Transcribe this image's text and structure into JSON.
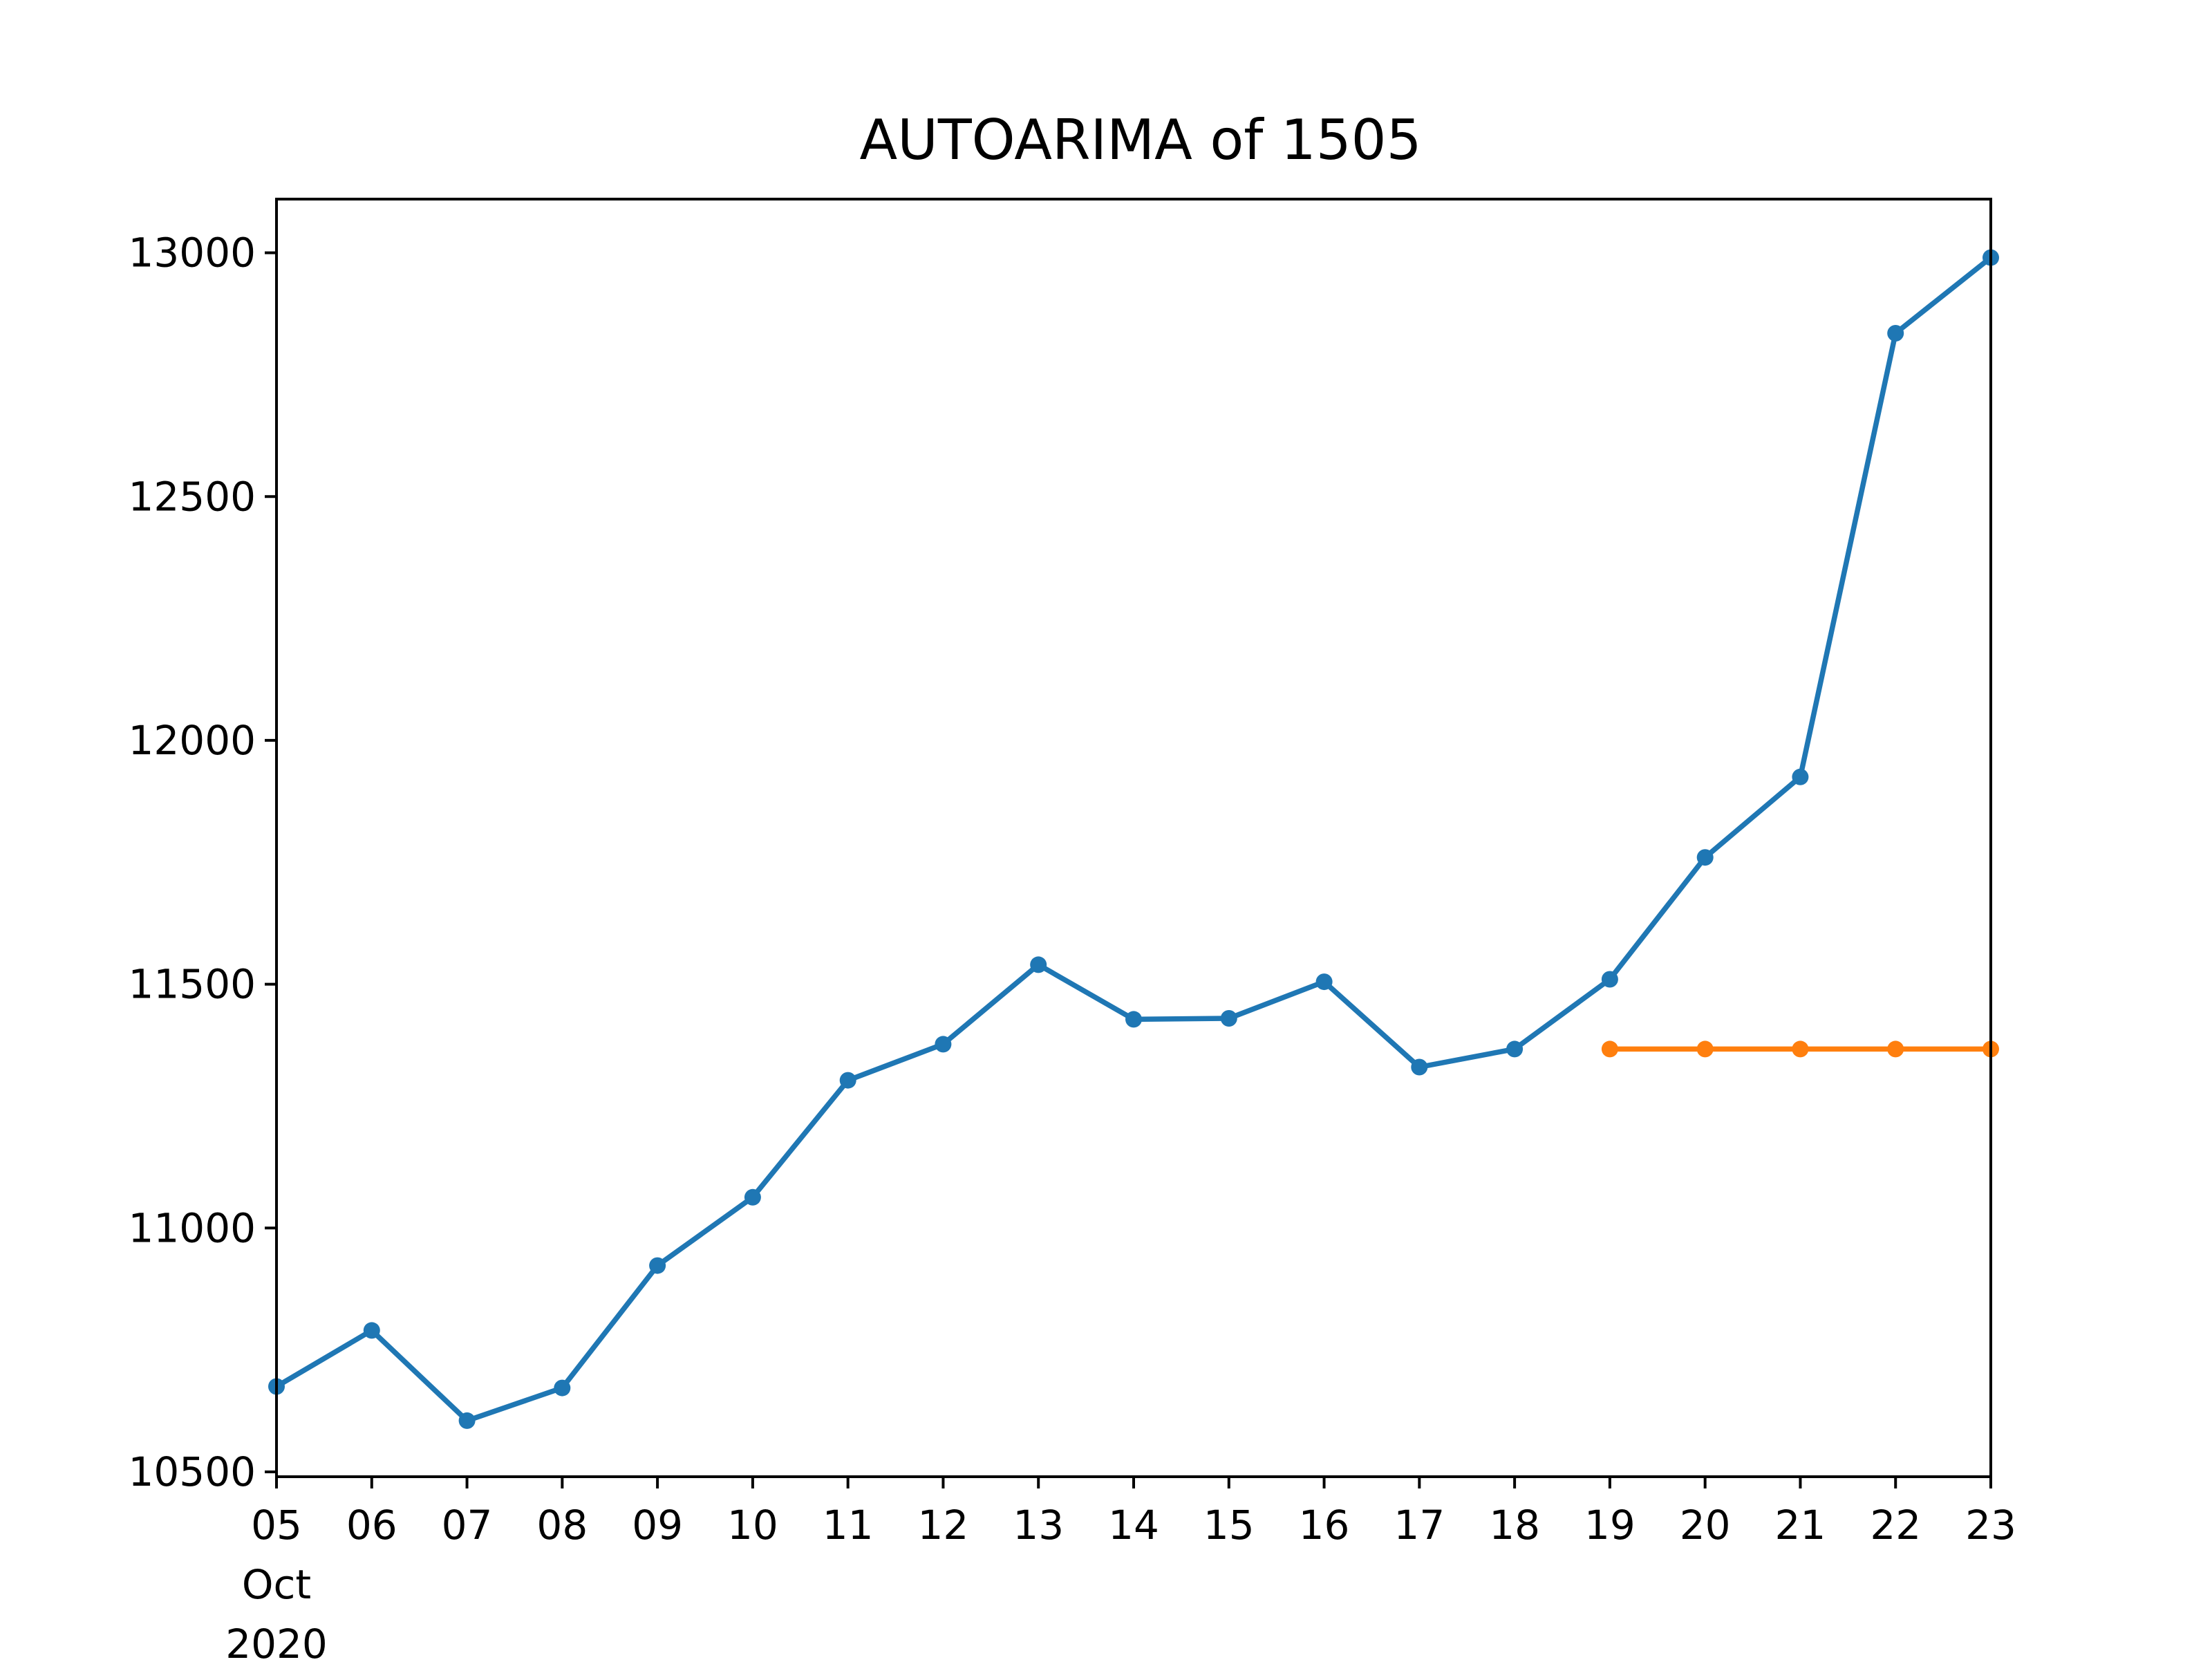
{
  "chart_data": {
    "type": "line",
    "title": "AUTOARIMA of 1505",
    "xlabel": "",
    "ylabel": "",
    "x": [
      "2020-10-05",
      "2020-10-06",
      "2020-10-07",
      "2020-10-08",
      "2020-10-09",
      "2020-10-10",
      "2020-10-11",
      "2020-10-12",
      "2020-10-13",
      "2020-10-14",
      "2020-10-15",
      "2020-10-16",
      "2020-10-17",
      "2020-10-18",
      "2020-10-19",
      "2020-10-20",
      "2020-10-21",
      "2020-10-22",
      "2020-10-23"
    ],
    "x_tick_labels": [
      "05",
      "06",
      "07",
      "08",
      "09",
      "10",
      "11",
      "12",
      "13",
      "14",
      "15",
      "16",
      "17",
      "18",
      "19",
      "20",
      "21",
      "22",
      "23"
    ],
    "x_tick_sublabel_month": "Oct",
    "x_tick_sublabel_year": "2020",
    "xlim": [
      "2020-10-05",
      "2020-10-23"
    ],
    "ylim": [
      10490,
      13110
    ],
    "y_ticks": [
      10500,
      11000,
      11500,
      12000,
      12500,
      13000
    ],
    "y_tick_labels": [
      "10500",
      "11000",
      "11500",
      "12000",
      "12500",
      "13000"
    ],
    "grid": false,
    "series": [
      {
        "color": "#1f77b4",
        "x": [
          "2020-10-05",
          "2020-10-06",
          "2020-10-07",
          "2020-10-08",
          "2020-10-09",
          "2020-10-10",
          "2020-10-11",
          "2020-10-12",
          "2020-10-13",
          "2020-10-14",
          "2020-10-15",
          "2020-10-16",
          "2020-10-17",
          "2020-10-18",
          "2020-10-19",
          "2020-10-20",
          "2020-10-21",
          "2020-10-22",
          "2020-10-23"
        ],
        "values": [
          10675,
          10790,
          10605,
          10672,
          10923,
          11063,
          11303,
          11377,
          11540,
          11428,
          11430,
          11505,
          11330,
          11367,
          11510,
          11760,
          11925,
          12835,
          12990
        ]
      },
      {
        "color": "#ff7f0e",
        "x": [
          "2020-10-19",
          "2020-10-20",
          "2020-10-21",
          "2020-10-22",
          "2020-10-23"
        ],
        "values": [
          11367,
          11367,
          11367,
          11367,
          11367
        ]
      }
    ]
  }
}
